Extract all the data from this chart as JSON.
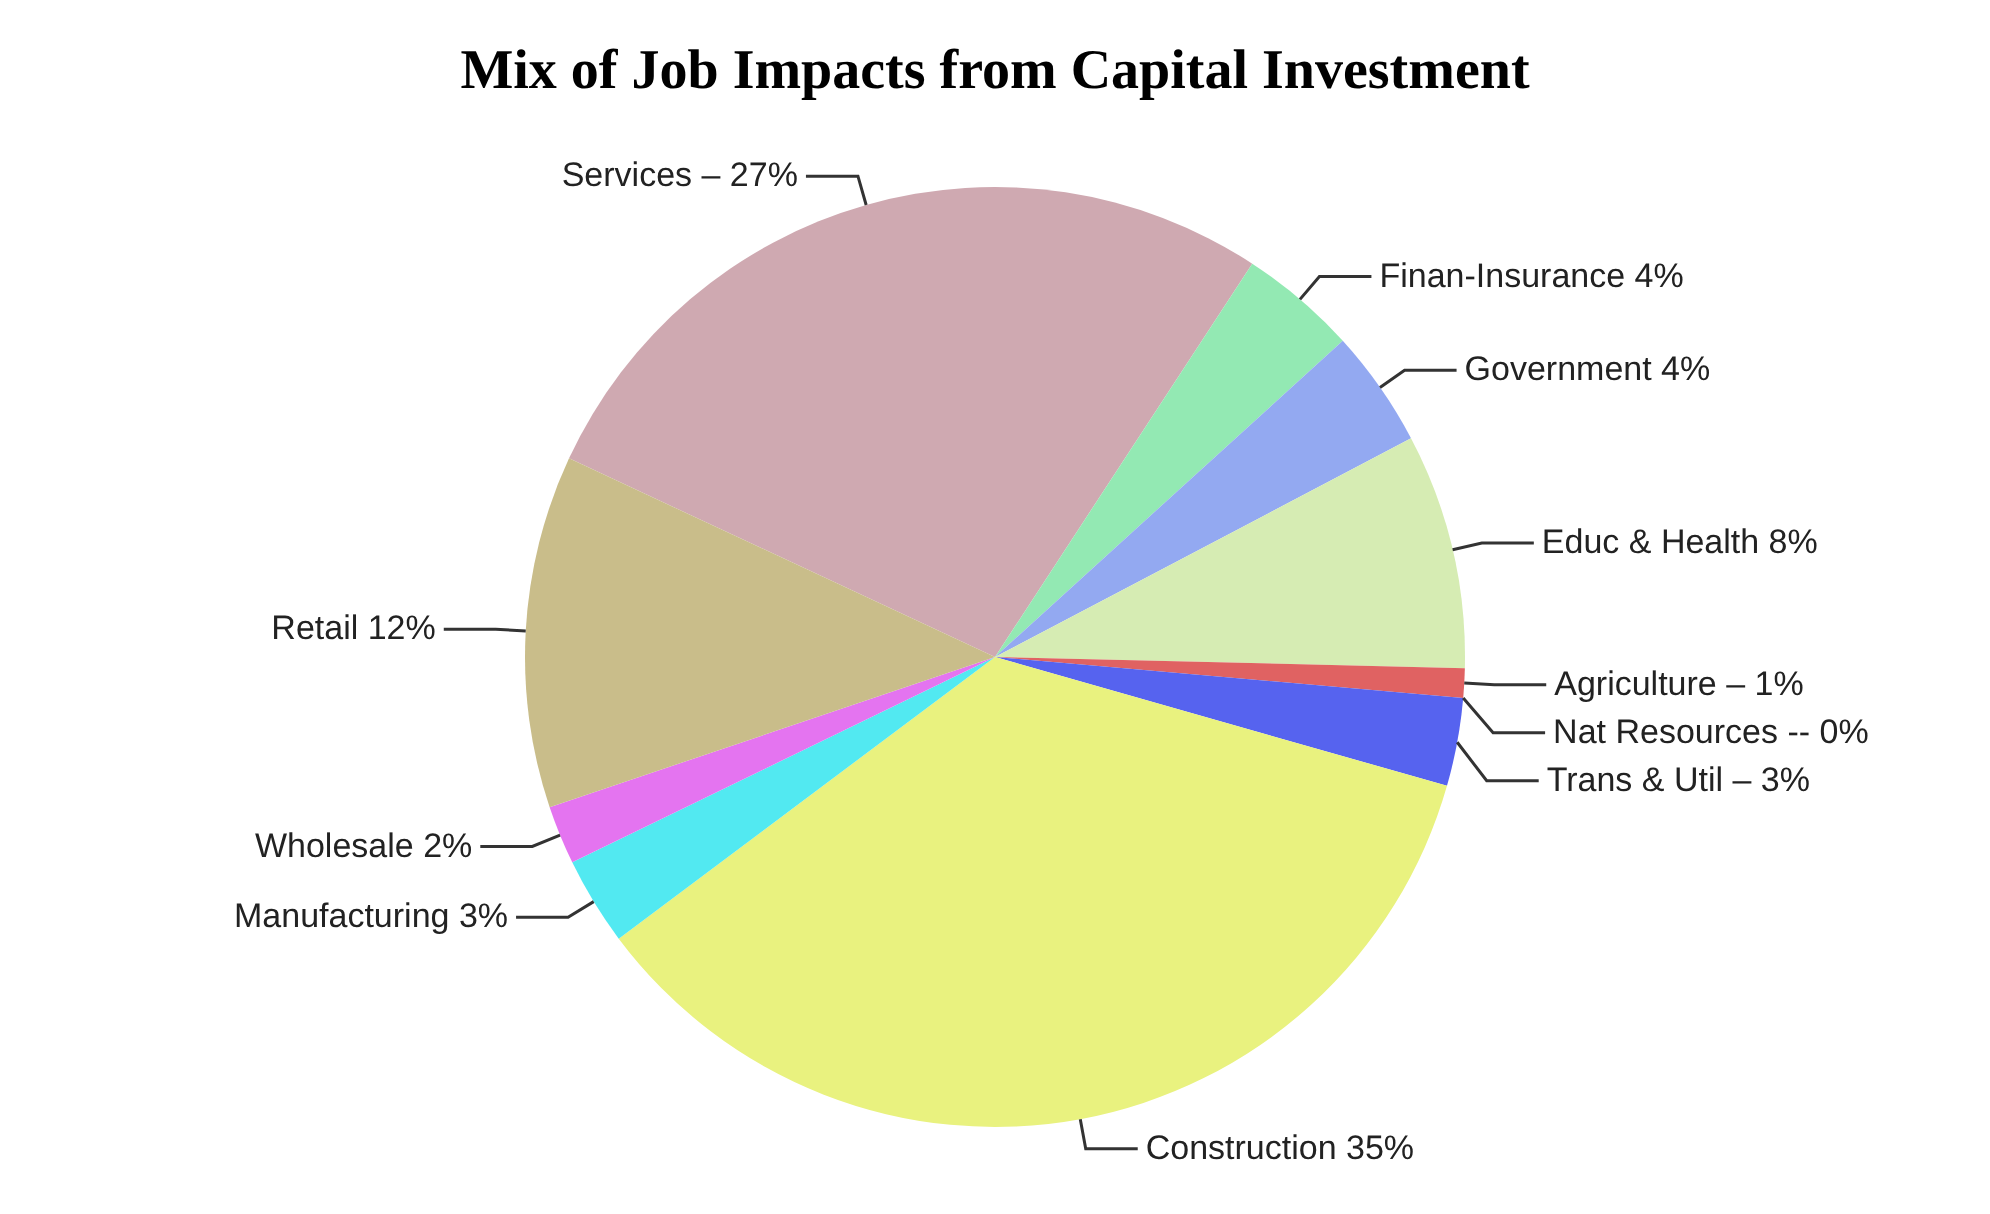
{
  "chart_data": {
    "type": "pie",
    "title": "Mix of Job Impacts from Capital Investment",
    "categories": [
      "Services –",
      "Finan-Insurance",
      "Government",
      "Educ & Health",
      "Agriculture –",
      "Nat Resources --",
      "Trans & Util –",
      "Construction",
      "Manufacturing",
      "Wholesale",
      "Retail"
    ],
    "values": [
      27,
      4,
      4,
      8,
      1,
      0,
      3,
      35,
      3,
      2,
      12
    ],
    "value_labels": [
      "27%",
      "4%",
      "4%",
      "8%",
      "1%",
      "0%",
      "3%",
      "35%",
      "3%",
      "2%",
      "12%"
    ],
    "colors": [
      "#cfa9b1",
      "#93e9b3",
      "#93a9f1",
      "#d6ecb3",
      "#e06262",
      "#7d86f2",
      "#5663ef",
      "#e9f27f",
      "#52e9f1",
      "#e474f0",
      "#c9bd8a"
    ]
  }
}
